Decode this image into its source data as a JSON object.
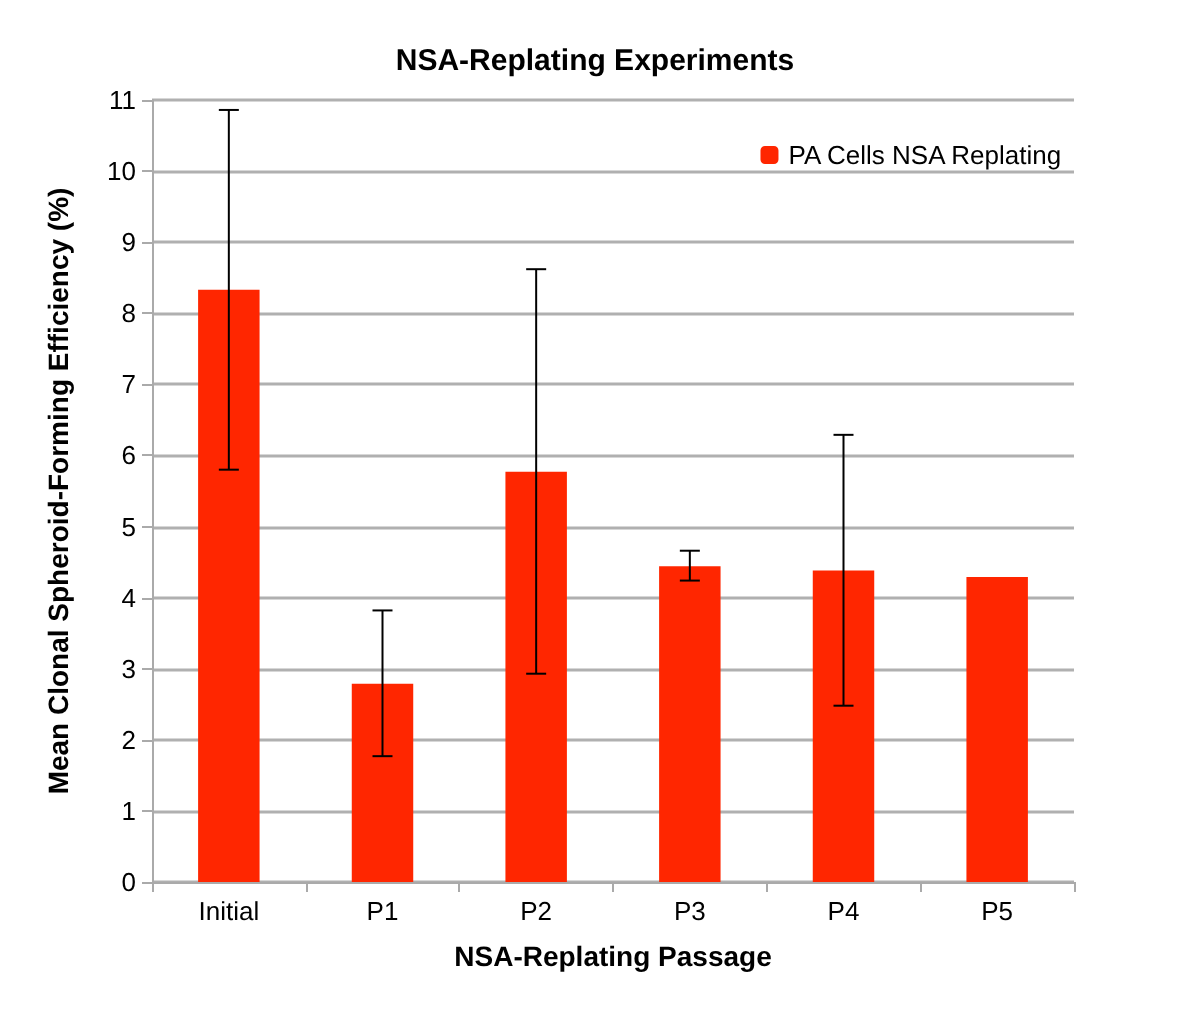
{
  "chart_data": {
    "type": "bar",
    "title": "NSA-Replating Experiments",
    "xlabel": "NSA-Replating Passage",
    "ylabel": "Mean Clonal Spheroid-Forming Efficiency (%)",
    "categories": [
      "Initial",
      "P1",
      "P2",
      "P3",
      "P4",
      "P5"
    ],
    "series": [
      {
        "name": "PA Cells NSA Replating",
        "color": "#ff2600",
        "values": [
          8.33,
          2.79,
          5.77,
          4.44,
          4.38,
          4.29
        ],
        "errors": [
          [
            5.8,
            10.86
          ],
          [
            1.77,
            3.82
          ],
          [
            2.93,
            8.62
          ],
          [
            4.24,
            4.66
          ],
          [
            2.48,
            6.29
          ],
          null
        ]
      }
    ],
    "ylim": [
      0,
      11
    ],
    "yticks": [
      0,
      1,
      2,
      3,
      4,
      5,
      6,
      7,
      8,
      9,
      10,
      11
    ],
    "grid": "y",
    "legend": "top right"
  }
}
